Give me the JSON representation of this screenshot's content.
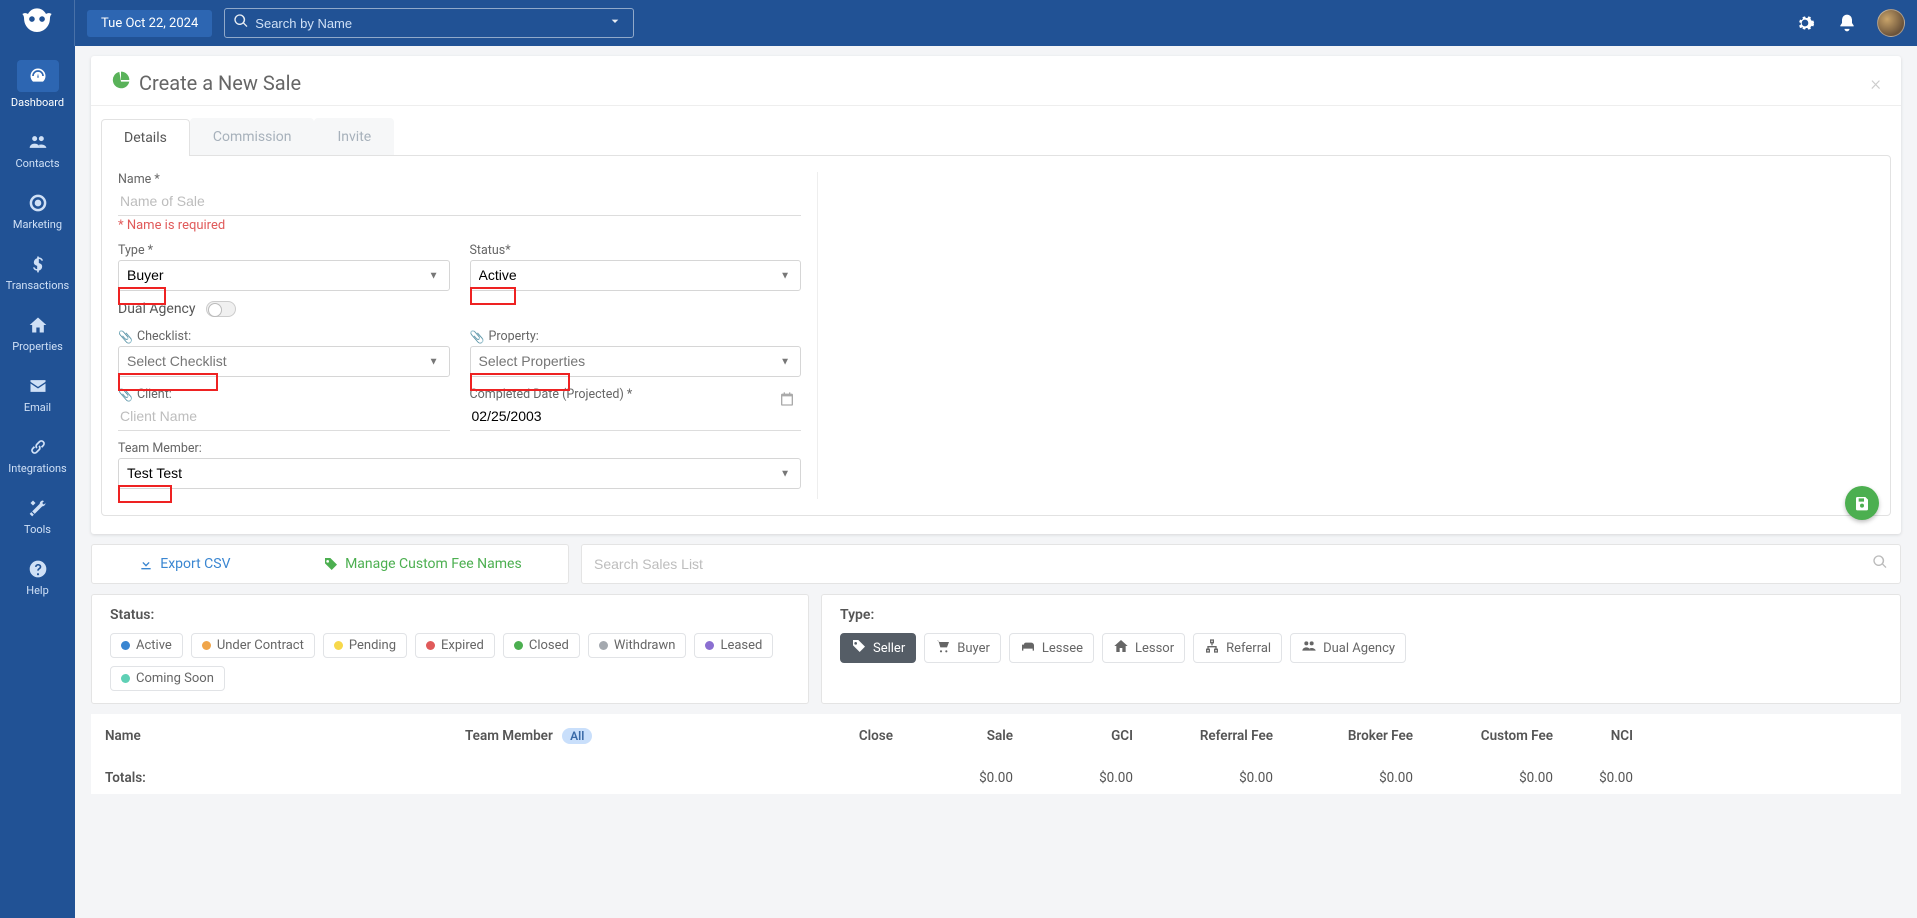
{
  "colors": {
    "brand": "#215295",
    "brand_light": "#2d66b2",
    "green": "#4caf50",
    "error": "#e05a5a",
    "link_blue": "#3a86d1"
  },
  "topbar": {
    "date": "Tue Oct 22, 2024",
    "search_placeholder": "Search by Name"
  },
  "sidebar": {
    "items": [
      {
        "label": "Dashboard",
        "icon": "dashboard",
        "active": true
      },
      {
        "label": "Contacts",
        "icon": "contacts",
        "active": false
      },
      {
        "label": "Marketing",
        "icon": "target",
        "active": false
      },
      {
        "label": "Transactions",
        "icon": "dollar",
        "active": false
      },
      {
        "label": "Properties",
        "icon": "home",
        "active": false
      },
      {
        "label": "Email",
        "icon": "envelope",
        "active": false
      },
      {
        "label": "Integrations",
        "icon": "link",
        "active": false
      },
      {
        "label": "Tools",
        "icon": "tools",
        "active": false
      },
      {
        "label": "Help",
        "icon": "help",
        "active": false
      }
    ]
  },
  "create_sale": {
    "title": "Create a New Sale",
    "tabs": [
      {
        "label": "Details",
        "active": true
      },
      {
        "label": "Commission",
        "active": false
      },
      {
        "label": "Invite",
        "active": false
      }
    ],
    "fields": {
      "name_label": "Name *",
      "name_placeholder": "Name of Sale",
      "name_error": "* Name is required",
      "type_label": "Type *",
      "type_value": "Buyer",
      "status_label": "Status*",
      "status_value": "Active",
      "dual_agency_label": "Dual Agency",
      "checklist_label": "Checklist:",
      "checklist_placeholder": "Select Checklist",
      "property_label": "Property:",
      "property_placeholder": "Select Properties",
      "client_label": "Client:",
      "client_placeholder": "Client Name",
      "completed_label": "Completed Date (Projected) *",
      "completed_value": "02/25/2003",
      "team_member_label": "Team Member:",
      "team_member_value": "Test Test"
    }
  },
  "list_toolbar": {
    "export_label": "Export CSV",
    "manage_label": "Manage Custom Fee Names",
    "search_placeholder": "Search Sales List"
  },
  "filters": {
    "status_label": "Status:",
    "type_label": "Type:",
    "statuses": [
      {
        "label": "Active",
        "color": "#3a86d1"
      },
      {
        "label": "Under Contract",
        "color": "#f0a54a"
      },
      {
        "label": "Pending",
        "color": "#f7d84b"
      },
      {
        "label": "Expired",
        "color": "#e05a5a"
      },
      {
        "label": "Closed",
        "color": "#4caf50"
      },
      {
        "label": "Withdrawn",
        "color": "#a4a9af"
      },
      {
        "label": "Leased",
        "color": "#8b6fd1"
      },
      {
        "label": "Coming Soon",
        "color": "#5fd0b5"
      }
    ],
    "types": [
      {
        "label": "Seller",
        "icon": "tag"
      },
      {
        "label": "Buyer",
        "icon": "cart"
      },
      {
        "label": "Lessee",
        "icon": "bed"
      },
      {
        "label": "Lessor",
        "icon": "home"
      },
      {
        "label": "Referral",
        "icon": "sitemap"
      },
      {
        "label": "Dual Agency",
        "icon": "users"
      }
    ]
  },
  "table": {
    "columns": [
      "Name",
      "Team Member",
      "Close",
      "Sale",
      "GCI",
      "Referral Fee",
      "Broker Fee",
      "Custom Fee",
      "NCI"
    ],
    "team_member_badge": "All",
    "totals_label": "Totals:",
    "totals": [
      "$0.00",
      "$0.00",
      "$0.00",
      "$0.00",
      "$0.00",
      "$0.00"
    ]
  }
}
